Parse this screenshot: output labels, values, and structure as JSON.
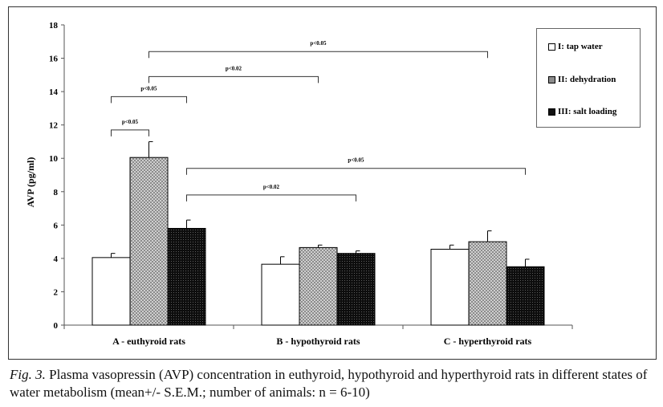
{
  "chart_data": {
    "type": "bar",
    "categories": [
      "A - euthyroid rats",
      "B - hypothyroid rats",
      "C - hyperthyroid rats"
    ],
    "series": [
      {
        "name": "I: tap water",
        "values": [
          4.05,
          3.65,
          4.55
        ],
        "errors": [
          0.25,
          0.45,
          0.25
        ],
        "fill": "white"
      },
      {
        "name": "II: dehydration",
        "values": [
          10.05,
          4.65,
          5.0
        ],
        "errors": [
          0.95,
          0.15,
          0.65
        ],
        "fill": "dotted"
      },
      {
        "name": "III: salt loading",
        "values": [
          5.8,
          4.3,
          3.5
        ],
        "errors": [
          0.5,
          0.15,
          0.45
        ],
        "fill": "dark"
      }
    ],
    "ylabel": "AVP (pg/ml)",
    "ylim": [
      0,
      18
    ],
    "yticks": [
      0,
      2,
      4,
      6,
      8,
      10,
      12,
      14,
      16,
      18
    ],
    "legend_position": "top-right",
    "annotations": [
      {
        "text": "p<0.05",
        "from": [
          0,
          0
        ],
        "to": [
          0,
          1
        ],
        "y": 11.7
      },
      {
        "text": "p<0.05",
        "from": [
          0,
          0
        ],
        "to": [
          0,
          2
        ],
        "y": 13.7
      },
      {
        "text": "p<0.02",
        "from": [
          0,
          1
        ],
        "to": [
          1,
          1
        ],
        "y": 14.9
      },
      {
        "text": "p<0.05",
        "from": [
          0,
          1
        ],
        "to": [
          2,
          1
        ],
        "y": 16.4
      },
      {
        "text": "p<0.02",
        "from": [
          0,
          2
        ],
        "to": [
          1,
          2
        ],
        "y": 7.8
      },
      {
        "text": "p<0.05",
        "from": [
          0,
          2
        ],
        "to": [
          2,
          2
        ],
        "y": 9.4
      }
    ],
    "colors": {
      "tap_water": "#ffffff",
      "dehydration": "#8c8c8c",
      "salt_loading": "#111111"
    }
  },
  "caption": {
    "label": "Fig. 3.",
    "text": " Plasma vasopressin (AVP) concentration in euthyroid, hypothyroid and hyperthyroid rats in different states of water metabolism (mean+/- S.E.M.; number of animals: n = 6-10)"
  }
}
